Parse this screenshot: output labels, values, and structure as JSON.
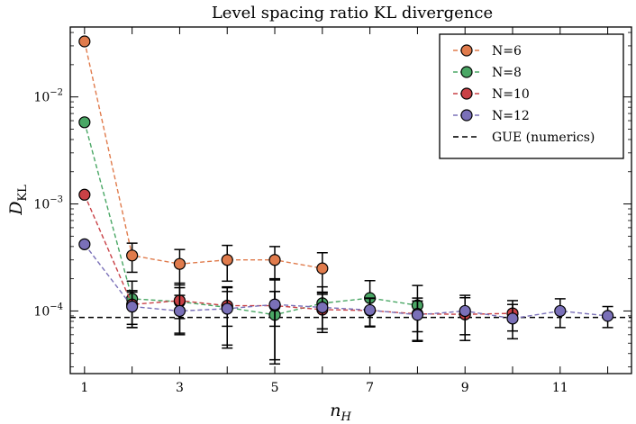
{
  "chart_data": {
    "type": "scatter",
    "title": "Level spacing ratio KL divergence",
    "xlabel_main": "n",
    "xlabel_sub": "H",
    "ylabel_main": "D",
    "ylabel_sub": "KL",
    "xlim": [
      0.7,
      12.5
    ],
    "ylim": [
      2.6e-05,
      0.045
    ],
    "yscale": "log",
    "x_ticks": [
      1,
      3,
      5,
      7,
      9,
      11
    ],
    "y_ticks": [
      {
        "value": 0.0001,
        "base": "10",
        "exp": "−4"
      },
      {
        "value": 0.001,
        "base": "10",
        "exp": "−3"
      },
      {
        "value": 0.01,
        "base": "10",
        "exp": "−2"
      }
    ],
    "legend_position": "top-right",
    "series": [
      {
        "name": "N=6",
        "color": "#e07b4c",
        "x": [
          1,
          2,
          3,
          4,
          5,
          6
        ],
        "y": [
          0.033,
          0.00033,
          0.000275,
          0.0003,
          0.0003,
          0.00025
        ],
        "err": [
          null,
          0.0001,
          0.0001,
          0.00011,
          0.0001,
          0.0001
        ]
      },
      {
        "name": "N=8",
        "color": "#4aa765",
        "x": [
          1,
          2,
          3,
          4,
          5,
          6,
          7,
          8
        ],
        "y": [
          0.0058,
          0.00013,
          0.000122,
          0.000108,
          9.2e-05,
          0.000118,
          0.000132,
          0.000113
        ],
        "err": [
          null,
          6e-05,
          6e-05,
          6e-05,
          6e-05,
          5e-05,
          6e-05,
          6e-05
        ]
      },
      {
        "name": "N=10",
        "color": "#c94146",
        "x": [
          1,
          2,
          3,
          4,
          5,
          6,
          7,
          8,
          9,
          10
        ],
        "y": [
          0.00122,
          0.000115,
          0.000125,
          0.000112,
          0.000112,
          0.000103,
          0.000101,
          9.4e-05,
          9.3e-05,
          9.5e-05
        ],
        "err": [
          null,
          4e-05,
          4e-05,
          4e-05,
          4e-05,
          4e-05,
          3e-05,
          3e-05,
          4e-05,
          3e-05
        ]
      },
      {
        "name": "N=12",
        "color": "#7a70b8",
        "x": [
          1,
          2,
          3,
          4,
          5,
          6,
          7,
          8,
          9,
          10,
          11,
          12
        ],
        "y": [
          0.00042,
          0.00011,
          0.0001,
          0.000105,
          0.000115,
          0.000108,
          0.000102,
          9.2e-05,
          0.0001,
          8.5e-05,
          0.0001,
          9e-05
        ],
        "err": [
          null,
          4e-05,
          4e-05,
          6e-05,
          8e-05,
          4e-05,
          3e-05,
          4e-05,
          4e-05,
          3e-05,
          3e-05,
          2e-05
        ]
      }
    ],
    "reference_line": {
      "label": "GUE (numerics)",
      "y": 8.7e-05,
      "color": "#000000",
      "style": "dashed"
    }
  }
}
